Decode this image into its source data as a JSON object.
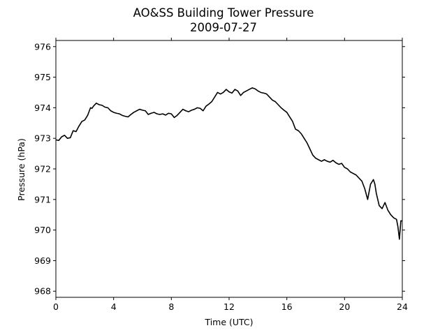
{
  "chart_data": {
    "type": "line",
    "title": "AO&SS Building Tower Pressure",
    "subtitle": "2009-07-27",
    "xlabel": "Time (UTC)",
    "ylabel": "Pressure (hPa)",
    "xlim": [
      0,
      24
    ],
    "ylim": [
      967.8,
      976.2
    ],
    "xticks": [
      0,
      4,
      8,
      12,
      16,
      20,
      24
    ],
    "yticks": [
      968,
      969,
      970,
      971,
      972,
      973,
      974,
      975,
      976
    ],
    "grid": false,
    "line_color": "#000000",
    "series": [
      {
        "x": [
          0,
          0.2,
          0.4,
          0.6,
          0.8,
          1.0,
          1.2,
          1.4,
          1.6,
          1.8,
          2.0,
          2.2,
          2.4,
          2.5,
          2.6,
          2.8,
          3.0,
          3.2,
          3.4,
          3.6,
          3.8,
          4.0,
          4.2,
          4.4,
          4.6,
          4.8,
          5.0,
          5.2,
          5.4,
          5.6,
          5.8,
          6.0,
          6.2,
          6.4,
          6.6,
          6.8,
          7.0,
          7.2,
          7.4,
          7.6,
          7.8,
          8.0,
          8.2,
          8.4,
          8.6,
          8.8,
          9.0,
          9.2,
          9.4,
          9.6,
          9.8,
          10.0,
          10.2,
          10.4,
          10.6,
          10.8,
          11.0,
          11.2,
          11.4,
          11.6,
          11.8,
          12.0,
          12.2,
          12.4,
          12.6,
          12.8,
          13.0,
          13.2,
          13.4,
          13.6,
          13.8,
          14.0,
          14.2,
          14.4,
          14.6,
          14.8,
          15.0,
          15.2,
          15.4,
          15.6,
          15.8,
          16.0,
          16.2,
          16.4,
          16.6,
          16.8,
          17.0,
          17.2,
          17.4,
          17.6,
          17.8,
          18.0,
          18.2,
          18.4,
          18.6,
          18.8,
          19.0,
          19.2,
          19.4,
          19.6,
          19.8,
          20.0,
          20.2,
          20.4,
          20.6,
          20.8,
          21.0,
          21.2,
          21.4,
          21.6,
          21.8,
          22.0,
          22.1,
          22.2,
          22.3,
          22.4,
          22.6,
          22.8,
          23.0,
          23.2,
          23.4,
          23.6,
          23.7,
          23.8,
          23.9,
          24.0
        ],
        "y": [
          972.95,
          972.93,
          973.05,
          973.1,
          973.0,
          973.02,
          973.25,
          973.22,
          973.4,
          973.55,
          973.6,
          973.75,
          974.0,
          973.98,
          974.05,
          974.15,
          974.1,
          974.08,
          974.02,
          974.0,
          973.9,
          973.85,
          973.82,
          973.8,
          973.75,
          973.72,
          973.7,
          973.78,
          973.85,
          973.9,
          973.95,
          973.92,
          973.9,
          973.78,
          973.82,
          973.85,
          973.8,
          973.78,
          973.8,
          973.76,
          973.82,
          973.8,
          973.68,
          973.75,
          973.85,
          973.95,
          973.9,
          973.87,
          973.92,
          973.95,
          974.0,
          973.98,
          973.9,
          974.05,
          974.12,
          974.2,
          974.35,
          974.5,
          974.45,
          974.5,
          974.6,
          974.52,
          974.48,
          974.6,
          974.55,
          974.4,
          974.5,
          974.55,
          974.6,
          974.65,
          974.62,
          974.55,
          974.5,
          974.48,
          974.45,
          974.35,
          974.25,
          974.2,
          974.1,
          974.0,
          973.92,
          973.85,
          973.7,
          973.55,
          973.3,
          973.25,
          973.15,
          973.0,
          972.85,
          972.65,
          972.45,
          972.35,
          972.3,
          972.25,
          972.3,
          972.25,
          972.22,
          972.28,
          972.2,
          972.15,
          972.18,
          972.05,
          972.0,
          971.9,
          971.85,
          971.8,
          971.7,
          971.6,
          971.35,
          971.0,
          971.5,
          971.65,
          971.5,
          971.2,
          971.0,
          970.8,
          970.7,
          970.9,
          970.65,
          970.5,
          970.4,
          970.35,
          970.1,
          969.7,
          970.3,
          970.3
        ]
      }
    ]
  }
}
